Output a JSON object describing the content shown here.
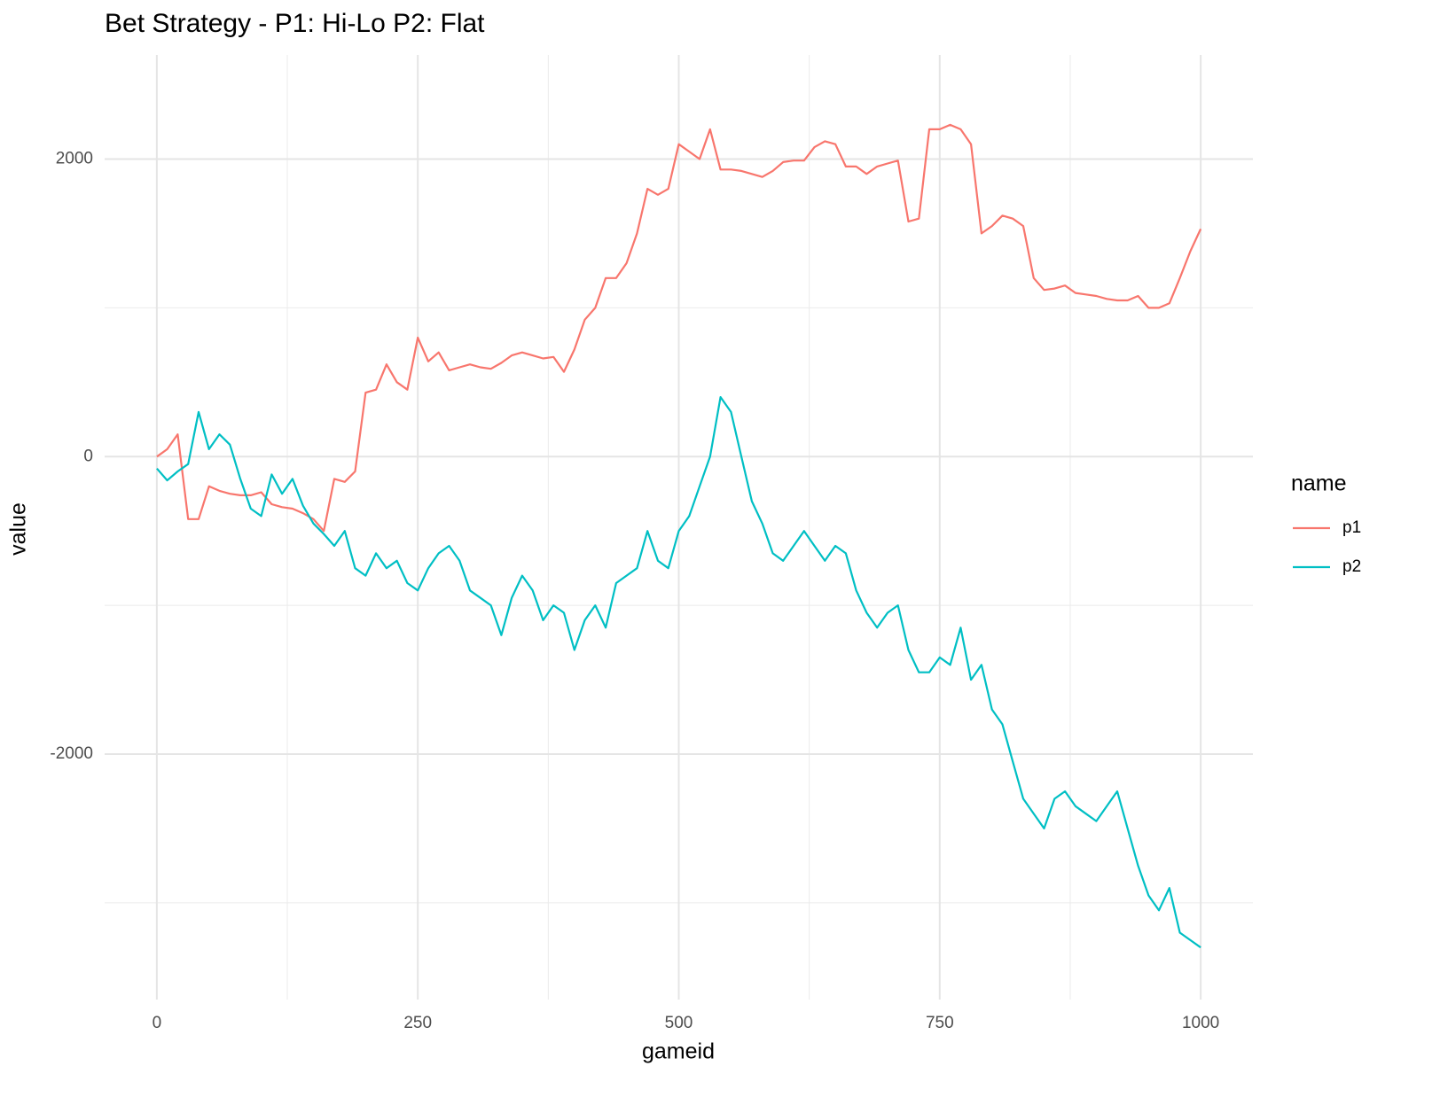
{
  "chart_data": {
    "type": "line",
    "title": "Bet Strategy - P1: Hi-Lo P2: Flat",
    "x_label": "gameid",
    "y_label": "value",
    "legend_title": "name",
    "x": [
      0,
      10,
      20,
      30,
      40,
      50,
      60,
      70,
      80,
      90,
      100,
      110,
      120,
      130,
      140,
      150,
      160,
      170,
      180,
      190,
      200,
      210,
      220,
      230,
      240,
      250,
      260,
      270,
      280,
      290,
      300,
      310,
      320,
      330,
      340,
      350,
      360,
      370,
      380,
      390,
      400,
      410,
      420,
      430,
      440,
      450,
      460,
      470,
      480,
      490,
      500,
      510,
      520,
      530,
      540,
      550,
      560,
      570,
      580,
      590,
      600,
      610,
      620,
      630,
      640,
      650,
      660,
      670,
      680,
      690,
      700,
      710,
      720,
      730,
      740,
      750,
      760,
      770,
      780,
      790,
      800,
      810,
      820,
      830,
      840,
      850,
      860,
      870,
      880,
      890,
      900,
      910,
      920,
      930,
      940,
      950,
      960,
      970,
      980,
      990,
      1000
    ],
    "series": [
      {
        "name": "p1",
        "color": "#F8766D",
        "values": [
          0,
          50,
          150,
          -420,
          -420,
          -200,
          -230,
          -250,
          -260,
          -260,
          -240,
          -320,
          -340,
          -350,
          -380,
          -420,
          -500,
          -150,
          -170,
          -100,
          430,
          450,
          620,
          500,
          450,
          800,
          640,
          700,
          580,
          600,
          620,
          600,
          590,
          630,
          680,
          700,
          680,
          660,
          670,
          570,
          720,
          920,
          1000,
          1200,
          1200,
          1300,
          1500,
          1800,
          1760,
          1800,
          2100,
          2050,
          2000,
          2200,
          1930,
          1930,
          1920,
          1900,
          1880,
          1920,
          1980,
          1990,
          1990,
          2080,
          2120,
          2100,
          1950,
          1950,
          1900,
          1950,
          1970,
          1990,
          1580,
          1600,
          2200,
          2200,
          2230,
          2200,
          2100,
          1500,
          1550,
          1620,
          1600,
          1550,
          1200,
          1120,
          1130,
          1150,
          1100,
          1090,
          1080,
          1060,
          1050,
          1050,
          1080,
          1000,
          1000,
          1030,
          1200,
          1380,
          1530
        ]
      },
      {
        "name": "p2",
        "color": "#00BFC4",
        "values": [
          -80,
          -160,
          -100,
          -50,
          300,
          50,
          150,
          80,
          -150,
          -350,
          -400,
          -120,
          -250,
          -150,
          -330,
          -450,
          -520,
          -600,
          -500,
          -750,
          -800,
          -650,
          -750,
          -700,
          -850,
          -900,
          -750,
          -650,
          -600,
          -700,
          -900,
          -950,
          -1000,
          -1200,
          -950,
          -800,
          -900,
          -1100,
          -1000,
          -1050,
          -1300,
          -1100,
          -1000,
          -1150,
          -850,
          -800,
          -750,
          -500,
          -700,
          -750,
          -500,
          -400,
          -200,
          0,
          400,
          300,
          0,
          -300,
          -450,
          -650,
          -700,
          -600,
          -500,
          -600,
          -700,
          -600,
          -650,
          -900,
          -1050,
          -1150,
          -1050,
          -1000,
          -1300,
          -1450,
          -1450,
          -1350,
          -1400,
          -1150,
          -1500,
          -1400,
          -1700,
          -1800,
          -2050,
          -2300,
          -2400,
          -2500,
          -2300,
          -2250,
          -2350,
          -2400,
          -2450,
          -2350,
          -2250,
          -2500,
          -2750,
          -2950,
          -3050,
          -2900,
          -3200,
          -3250,
          -3300
        ]
      }
    ],
    "xlim": [
      -50,
      1050
    ],
    "ylim": [
      -3650,
      2700
    ],
    "xticks": [
      0,
      250,
      500,
      750,
      1000
    ],
    "yticks": [
      -2000,
      0,
      2000
    ],
    "x_minor_grid": [
      125,
      375,
      625,
      875
    ],
    "y_minor_grid": [
      -3000,
      -1000,
      1000
    ],
    "grid": true,
    "legend_position": "right"
  }
}
